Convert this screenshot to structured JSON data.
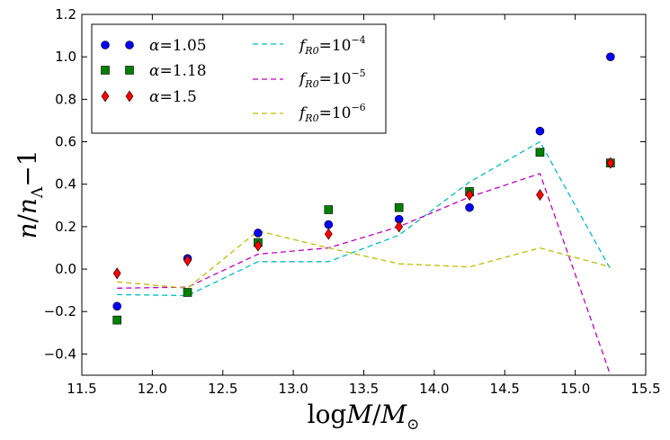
{
  "chart_data": {
    "type": "scatter",
    "xlabel_main": "log",
    "xlabel_var": "M",
    "xlabel_sep": "/",
    "xlabel_sub_var": "M",
    "xlabel_sub": "⊙",
    "ylabel_num": "n",
    "ylabel_sep": "/",
    "ylabel_den": "n",
    "ylabel_den_sub": "Λ",
    "ylabel_minus": "−1",
    "xlim": [
      11.5,
      15.5
    ],
    "ylim": [
      -0.5,
      1.2
    ],
    "xticks": [
      11.5,
      12.0,
      12.5,
      13.0,
      13.5,
      14.0,
      14.5,
      15.0,
      15.5
    ],
    "xtick_labels": [
      "11.5",
      "12.0",
      "12.5",
      "13.0",
      "13.5",
      "14.0",
      "14.5",
      "15.0",
      "15.5"
    ],
    "yticks": [
      -0.4,
      -0.2,
      0.0,
      0.2,
      0.4,
      0.6,
      0.8,
      1.0,
      1.2
    ],
    "ytick_labels": [
      "−0.4",
      "−0.2",
      "0.0",
      "0.2",
      "0.4",
      "0.6",
      "0.8",
      "1.0",
      "1.2"
    ],
    "legend_position": "top-left",
    "series": [
      {
        "name": "alpha-1.05",
        "legend_symbol": "α",
        "legend_eq": "=",
        "legend_value": "1.05",
        "kind": "marker",
        "marker": "circle",
        "color": "#0000ff",
        "x": [
          11.75,
          12.25,
          12.75,
          13.25,
          13.75,
          14.25,
          14.75,
          15.25
        ],
        "y": [
          -0.175,
          0.05,
          0.17,
          0.21,
          0.235,
          0.29,
          0.65,
          1.0
        ]
      },
      {
        "name": "alpha-1.18",
        "legend_symbol": "α",
        "legend_eq": "=",
        "legend_value": "1.18",
        "kind": "marker",
        "marker": "square",
        "color": "#008000",
        "x": [
          11.75,
          12.25,
          12.75,
          13.25,
          13.75,
          14.25,
          14.75,
          15.25
        ],
        "y": [
          -0.24,
          -0.11,
          0.125,
          0.28,
          0.29,
          0.365,
          0.55,
          0.5
        ]
      },
      {
        "name": "alpha-1.5",
        "legend_symbol": "α",
        "legend_eq": "=",
        "legend_value": "1.5",
        "kind": "marker",
        "marker": "diamond",
        "color": "#ff0000",
        "x": [
          11.75,
          12.25,
          12.75,
          13.25,
          13.75,
          14.25,
          14.75,
          15.25
        ],
        "y": [
          -0.02,
          0.04,
          0.11,
          0.165,
          0.2,
          0.35,
          0.35,
          0.5
        ]
      },
      {
        "name": "fR0-1e-4",
        "legend_symbol": "f",
        "legend_sub": "R0",
        "legend_eq": "=",
        "legend_base": "10",
        "legend_exp": "−4",
        "kind": "line",
        "color": "#00bfbf",
        "x": [
          11.75,
          12.25,
          12.75,
          13.25,
          13.75,
          14.25,
          14.75,
          15.25
        ],
        "y": [
          -0.12,
          -0.125,
          0.035,
          0.035,
          0.16,
          0.41,
          0.6,
          0.0
        ]
      },
      {
        "name": "fR0-1e-5",
        "legend_symbol": "f",
        "legend_sub": "R0",
        "legend_eq": "=",
        "legend_base": "10",
        "legend_exp": "−5",
        "kind": "line",
        "color": "#bf00bf",
        "x": [
          11.75,
          12.25,
          12.75,
          13.25,
          13.75,
          14.25,
          14.75,
          15.25
        ],
        "y": [
          -0.09,
          -0.085,
          0.07,
          0.1,
          0.2,
          0.34,
          0.45,
          -0.5
        ]
      },
      {
        "name": "fR0-1e-6",
        "legend_symbol": "f",
        "legend_sub": "R0",
        "legend_eq": "=",
        "legend_base": "10",
        "legend_exp": "−6",
        "kind": "line",
        "color": "#bfbf00",
        "x": [
          11.75,
          12.25,
          12.75,
          13.25,
          13.75,
          14.25,
          14.75,
          15.25
        ],
        "y": [
          -0.06,
          -0.09,
          0.18,
          0.1,
          0.025,
          0.01,
          0.1,
          0.01
        ]
      }
    ]
  }
}
